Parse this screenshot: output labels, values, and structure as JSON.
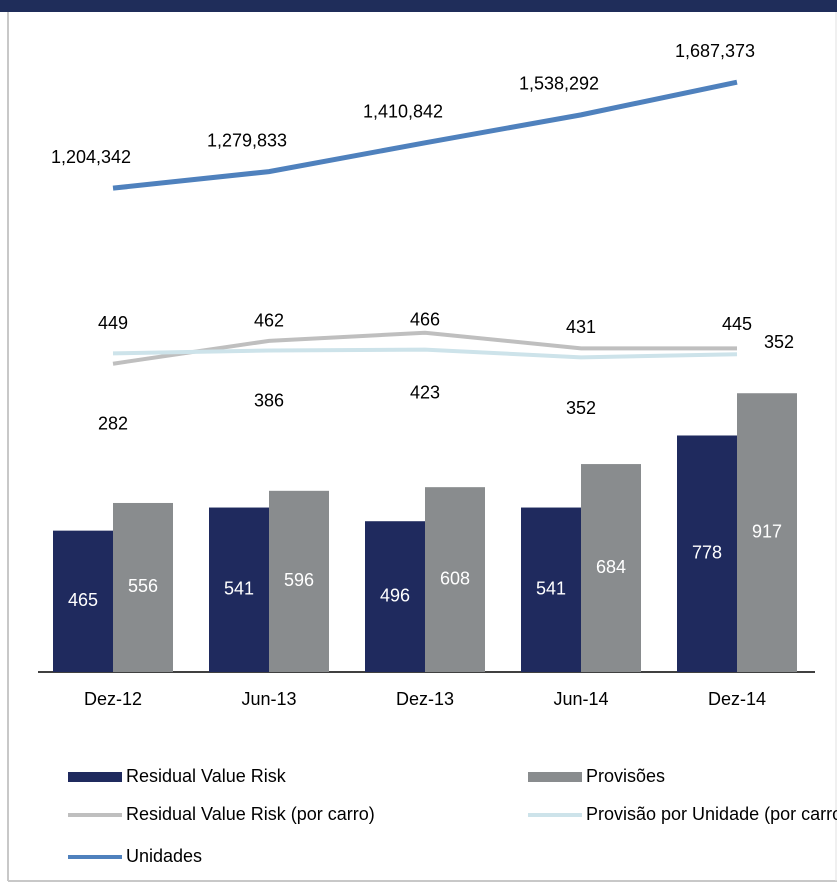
{
  "chart_data": {
    "type": "bar",
    "categories": [
      "Dez-12",
      "Jun-13",
      "Dez-13",
      "Jun-14",
      "Dez-14"
    ],
    "ylim": [
      0,
      2000
    ],
    "y2lim": [
      -1120,
      1645
    ],
    "y3lim": [
      -1000,
      1765
    ],
    "y4lim": [
      -1000000,
      1770000
    ],
    "series": [
      {
        "name": "Residual Value Risk",
        "type": "bar",
        "color": "#1f2a5e",
        "values": [
          465,
          541,
          496,
          541,
          778
        ]
      },
      {
        "name": "Provisões",
        "type": "bar",
        "color": "#898c8e",
        "values": [
          556,
          596,
          608,
          684,
          917
        ]
      },
      {
        "name": "Residual Value Risk (por carro)",
        "type": "line",
        "axis": "y2",
        "color": "#bfbfbf",
        "values": [
          282,
          386,
          423,
          352,
          352
        ]
      },
      {
        "name": "Provisão por Unidade (por carro)",
        "type": "line",
        "axis": "y3",
        "color": "#cde3ea",
        "values": [
          449,
          462,
          466,
          431,
          445
        ]
      },
      {
        "name": "Unidades",
        "type": "line",
        "axis": "y4",
        "color": "#4f81bd",
        "values": [
          1204342,
          1279833,
          1410842,
          1538292,
          1687373
        ],
        "value_labels": [
          "1,204,342",
          "1,279,833",
          "1,410,842",
          "1,538,292",
          "1,687,373"
        ]
      }
    ]
  }
}
